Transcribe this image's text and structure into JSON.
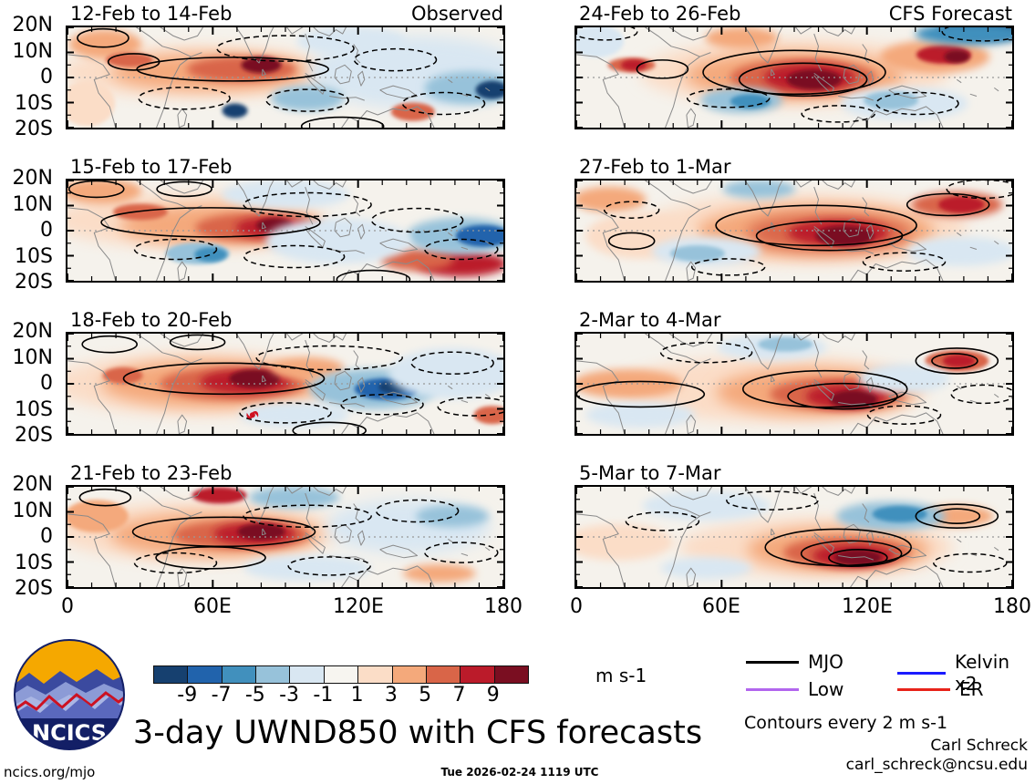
{
  "panels": [
    {
      "title": "12-Feb to 14-Feb",
      "subtitle": "Observed",
      "source": "Observed"
    },
    {
      "title": "24-Feb to 26-Feb",
      "subtitle": "CFS Forecast",
      "source": "CFS Forecast"
    },
    {
      "title": "15-Feb to 17-Feb",
      "subtitle": "",
      "source": "Observed"
    },
    {
      "title": "27-Feb to 1-Mar",
      "subtitle": "",
      "source": "CFS Forecast"
    },
    {
      "title": "18-Feb to 20-Feb",
      "subtitle": "",
      "source": "Observed"
    },
    {
      "title": "2-Mar to 4-Mar",
      "subtitle": "",
      "source": "CFS Forecast"
    },
    {
      "title": "21-Feb to 23-Feb",
      "subtitle": "",
      "source": "Observed"
    },
    {
      "title": "5-Mar to 7-Mar",
      "subtitle": "",
      "source": "CFS Forecast"
    }
  ],
  "axes": {
    "y_ticks": [
      "20N",
      "10N",
      "0",
      "10S",
      "20S"
    ],
    "x_ticks": [
      "0",
      "60E",
      "120E",
      "180"
    ]
  },
  "colorbar": {
    "tick_labels": [
      "-9",
      "-7",
      "-5",
      "-3",
      "-1",
      "1",
      "3",
      "5",
      "7",
      "9"
    ],
    "colors": [
      "#16406f",
      "#2163ac",
      "#4190bd",
      "#97c2da",
      "#d9e7f2",
      "#f7f5f0",
      "#fbddc7",
      "#f4a97b",
      "#d96548",
      "#bb1b2a",
      "#7a0e21"
    ],
    "units": "m s-1"
  },
  "legend": {
    "entries": [
      {
        "label": "MJO",
        "color": "#000000"
      },
      {
        "label": "Kelvin x2",
        "color": "#1a1aff"
      },
      {
        "label": "Low",
        "color": "#b266ee"
      },
      {
        "label": "ER",
        "color": "#e8231a"
      }
    ]
  },
  "footer": {
    "main_title": "3-day UWND850 with CFS forecasts",
    "contour_note": "Contours every 2 m s-1",
    "credit_name": "Carl Schreck",
    "credit_email": "carl_schreck@ncsu.edu",
    "url": "ncics.org/mjo",
    "timestamp": "Tue 2026-02-24 1119 UTC",
    "logo_text": "NCICS"
  },
  "chart_data": {
    "type": "heatmap",
    "title": "3-day UWND850 with CFS forecasts",
    "variable": "850-hPa zonal wind anomaly, 3-day mean",
    "units": "m s-1",
    "xlabel_ticks": [
      "0",
      "60E",
      "120E",
      "180"
    ],
    "x_range_deg_lon": [
      0,
      180
    ],
    "ylabel_ticks": [
      "20N",
      "10N",
      "0",
      "10S",
      "20S"
    ],
    "y_range_deg_lat": [
      20,
      -20
    ],
    "shading_levels": [
      -9,
      -7,
      -5,
      -3,
      -1,
      1,
      3,
      5,
      7,
      9
    ],
    "contour_interval": "2 m s-1",
    "legend_position": "bottom-right",
    "grid": false,
    "panels": [
      {
        "period": "12-Feb to 14-Feb",
        "source": "Observed",
        "main_features": "Westerly (red) band along equator 40E-100E with maximum ~9 m s-1 near 80E; easterly (blue) anomalies over west-central Pacific, strongest near 170E/10S; MJO contour over equatorial Indian Ocean"
      },
      {
        "period": "24-Feb to 26-Feb",
        "source": "CFS Forecast",
        "main_features": "Strong westerlies >9 m s-1 over east Indian Ocean/Maritime Continent ~90E-110E; closed MJO contours there; easterlies far NE corner near dateline and SE quadrant"
      },
      {
        "period": "15-Feb to 17-Feb",
        "source": "Observed",
        "main_features": "Intense westerly band 50E-110E near equator, core >9 m s-1 near 85E; strong easterlies near 175E; secondary westerly maximum near 110E/15S"
      },
      {
        "period": "27-Feb to 1-Mar",
        "source": "CFS Forecast",
        "main_features": "Very strong westerlies over Maritime Continent 90E-130E inside large MJO contour; additional westerlies near 165E/5N; dashed easterly contours east and far west"
      },
      {
        "period": "18-Feb to 20-Feb",
        "source": "Observed",
        "main_features": "Broad dark-red westerlies 40E-100E equator and south; tropical cyclone symbol near 75E/12S; deep easterlies near 120E-140E south of equator"
      },
      {
        "period": "2-Mar to 4-Mar",
        "source": "CFS Forecast",
        "main_features": "Westerlies south of equator 90E-130E with MJO contour; closed anticyclonic contour pair with red core near 160E/8N; weak anomalies western third"
      },
      {
        "period": "21-Feb to 23-Feb",
        "source": "Observed",
        "main_features": "Dark-red westerly maximum 55E-100E near equator inside MJO contour; easterlies over west Pacific 130E-170E; red patch near 40E/5N"
      },
      {
        "period": "5-Mar to 7-Mar",
        "source": "CFS Forecast",
        "main_features": "Westerly maximum near 110E-130E south of equator with concentric contours; easterlies near 130E/5N; double closed contour near 160E/8N; weak west half"
      }
    ],
    "legend_entries": [
      {
        "label": "MJO",
        "color": "#000000",
        "style": "solid"
      },
      {
        "label": "Kelvin x2",
        "color": "#1a1aff",
        "style": "solid"
      },
      {
        "label": "Low",
        "color": "#b266ee",
        "style": "solid"
      },
      {
        "label": "ER",
        "color": "#e8231a",
        "style": "solid"
      }
    ]
  }
}
